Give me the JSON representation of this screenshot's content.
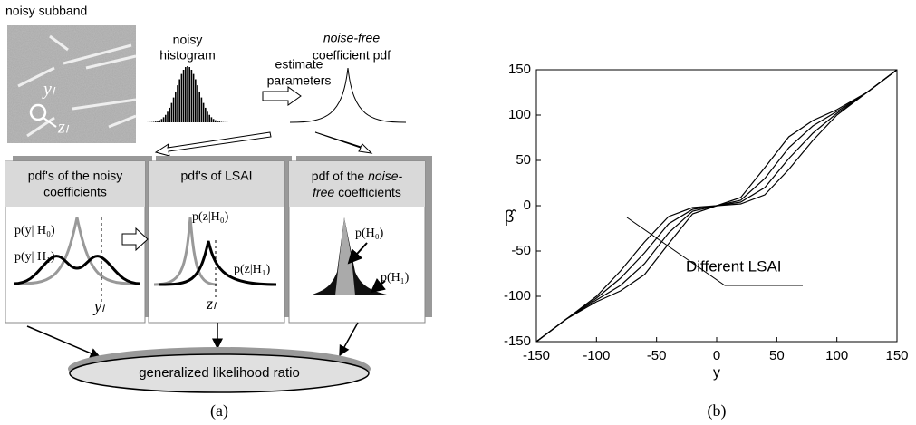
{
  "diagram": {
    "subband_label": "noisy subband",
    "y_label": "yₗ",
    "z_label": "zₗ",
    "histogram_label": [
      "noisy",
      "histogram"
    ],
    "estimate_label": [
      "estimate",
      "parameters"
    ],
    "pdf_label": [
      "noise-free",
      "coefficient pdf"
    ],
    "boxes": [
      {
        "title": [
          "pdf's of the noisy",
          "coefficients"
        ],
        "labels": [
          "p(y| H₀)",
          "p(y| H₁)",
          "yₗ"
        ]
      },
      {
        "title": [
          "pdf's of LSAI"
        ],
        "labels": [
          "p(z|H₀)",
          "p(z|H₁)",
          "zₗ"
        ]
      },
      {
        "title": [
          "pdf of the",
          "noise-",
          "free",
          "coefficients"
        ],
        "labels": [
          "p(H₀)",
          "p(H₁)"
        ]
      }
    ],
    "result": "generalized likelihood ratio",
    "caption": "(a)"
  },
  "chart_data": {
    "type": "line",
    "xlabel": "y",
    "ylabel": "β̂",
    "annotation": "Different LSAI",
    "caption": "(b)",
    "x": [
      -150,
      -125,
      -100,
      -80,
      -60,
      -40,
      -20,
      0,
      20,
      40,
      60,
      80,
      100,
      125,
      150
    ],
    "series": [
      {
        "color": "#000000",
        "values": [
          -150,
          -125,
          -100,
          -72,
          -40,
          -12,
          -2,
          0,
          2,
          12,
          40,
          72,
          100,
          125,
          150
        ]
      },
      {
        "color": "#000000",
        "values": [
          -150,
          -125,
          -102,
          -80,
          -52,
          -20,
          -4,
          0,
          4,
          20,
          52,
          80,
          102,
          125,
          150
        ]
      },
      {
        "color": "#000000",
        "values": [
          -150,
          -125,
          -104,
          -88,
          -64,
          -30,
          -6,
          0,
          6,
          30,
          64,
          88,
          104,
          125,
          150
        ]
      },
      {
        "color": "#000000",
        "values": [
          -150,
          -125,
          -106,
          -94,
          -76,
          -42,
          -9,
          0,
          9,
          42,
          76,
          94,
          106,
          125,
          150
        ]
      }
    ],
    "xlim": [
      -150,
      150
    ],
    "ylim": [
      -150,
      150
    ],
    "xticks": [
      -150,
      -100,
      -50,
      0,
      50,
      100,
      150
    ],
    "yticks": [
      -150,
      -100,
      -50,
      0,
      50,
      100,
      150
    ]
  }
}
